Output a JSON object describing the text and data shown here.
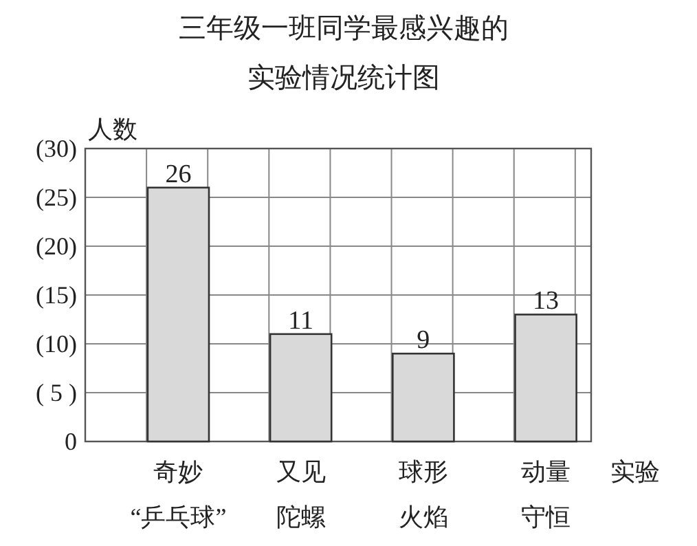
{
  "chart_data": {
    "type": "bar",
    "title": "三年级一班同学最感兴趣的实验情况统计图",
    "xlabel": "实验",
    "ylabel": "人数",
    "categories": [
      "奇妙“乒乓球”",
      "又见陀螺",
      "球形火焰",
      "动量守恒"
    ],
    "values": [
      26,
      11,
      9,
      13
    ],
    "color": "#d9d9d9",
    "ylim": [
      0,
      30
    ],
    "yticks": [
      0,
      {
        "value": 5,
        "label": "( 5 )"
      },
      {
        "value": 10,
        "label": "(10)"
      },
      {
        "value": 15,
        "label": "(15)"
      },
      {
        "value": 20,
        "label": "(20)"
      },
      {
        "value": 25,
        "label": "(25)"
      },
      {
        "value": 30,
        "label": "(30)"
      }
    ],
    "grid": true,
    "data_labels": true
  }
}
